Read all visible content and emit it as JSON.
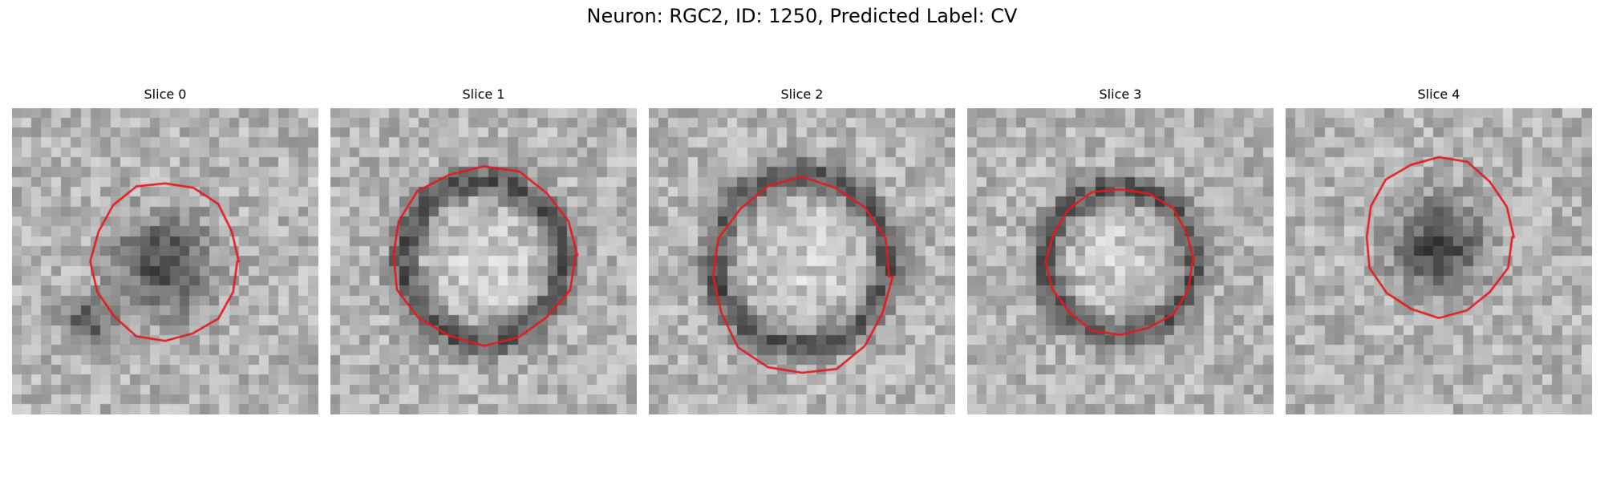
{
  "figure": {
    "title": "Neuron: RGC2, ID: 1250, Predicted Label: CV"
  },
  "panels": [
    {
      "title": "Slice 0"
    },
    {
      "title": "Slice 1"
    },
    {
      "title": "Slice 2"
    },
    {
      "title": "Slice 3"
    },
    {
      "title": "Slice 4"
    }
  ],
  "contour_color": "#e31a1c"
}
